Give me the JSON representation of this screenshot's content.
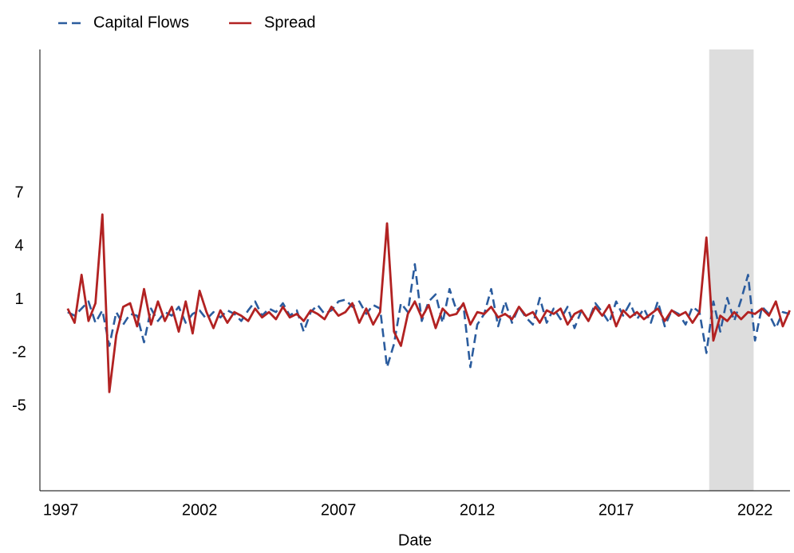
{
  "chart_data": {
    "type": "line",
    "x_label": "Date",
    "x": [
      1997.25,
      1997.5,
      1997.75,
      1998.0,
      1998.25,
      1998.5,
      1998.75,
      1999.0,
      1999.25,
      1999.5,
      1999.75,
      2000.0,
      2000.25,
      2000.5,
      2000.75,
      2001.0,
      2001.25,
      2001.5,
      2001.75,
      2002.0,
      2002.25,
      2002.5,
      2002.75,
      2003.0,
      2003.25,
      2003.5,
      2003.75,
      2004.0,
      2004.25,
      2004.5,
      2004.75,
      2005.0,
      2005.25,
      2005.5,
      2005.75,
      2006.0,
      2006.25,
      2006.5,
      2006.75,
      2007.0,
      2007.25,
      2007.5,
      2007.75,
      2008.0,
      2008.25,
      2008.5,
      2008.75,
      2009.0,
      2009.25,
      2009.5,
      2009.75,
      2010.0,
      2010.25,
      2010.5,
      2010.75,
      2011.0,
      2011.25,
      2011.5,
      2011.75,
      2012.0,
      2012.25,
      2012.5,
      2012.75,
      2013.0,
      2013.25,
      2013.5,
      2013.75,
      2014.0,
      2014.25,
      2014.5,
      2014.75,
      2015.0,
      2015.25,
      2015.5,
      2015.75,
      2016.0,
      2016.25,
      2016.5,
      2016.75,
      2017.0,
      2017.25,
      2017.5,
      2017.75,
      2018.0,
      2018.25,
      2018.5,
      2018.75,
      2019.0,
      2019.25,
      2019.5,
      2019.75,
      2020.0,
      2020.25,
      2020.5,
      2020.75,
      2021.0,
      2021.25,
      2021.5,
      2021.75,
      2022.0,
      2022.25,
      2022.5,
      2022.75,
      2023.0,
      2023.25
    ],
    "series": [
      {
        "name": "Capital Flows",
        "color": "#2b5c9e",
        "dashed": true,
        "values": [
          0.3,
          0.1,
          0.5,
          0.9,
          -0.3,
          0.4,
          -1.6,
          0.3,
          -0.4,
          0.2,
          0.1,
          -1.4,
          0.5,
          -0.2,
          0.3,
          0.1,
          0.6,
          -0.3,
          0.2,
          0.4,
          -0.1,
          0.3,
          0.0,
          0.4,
          0.2,
          -0.2,
          0.4,
          0.9,
          0.1,
          0.5,
          0.3,
          0.8,
          0.1,
          0.4,
          -0.8,
          0.3,
          0.7,
          0.2,
          0.4,
          0.9,
          1.0,
          0.6,
          0.9,
          0.2,
          0.7,
          0.5,
          -2.8,
          -1.5,
          0.8,
          0.3,
          3.0,
          -0.2,
          0.9,
          1.3,
          -0.3,
          1.6,
          0.4,
          0.7,
          -2.8,
          -0.4,
          0.2,
          1.6,
          -0.5,
          0.9,
          -0.3,
          0.6,
          0.0,
          -0.4,
          1.1,
          -0.3,
          0.5,
          -0.1,
          0.6,
          -0.6,
          0.4,
          -0.2,
          0.8,
          0.3,
          -0.3,
          0.9,
          0.1,
          0.8,
          -0.1,
          0.5,
          -0.3,
          0.9,
          -0.5,
          0.4,
          0.2,
          -0.4,
          0.6,
          0.3,
          -2.0,
          0.9,
          -0.8,
          1.1,
          -0.2,
          1.0,
          2.4,
          -1.3,
          0.6,
          0.2,
          -0.6,
          0.3,
          0.2
        ]
      },
      {
        "name": "Spread",
        "color": "#b22222",
        "dashed": false,
        "values": [
          0.5,
          -0.3,
          2.4,
          -0.2,
          0.8,
          5.8,
          -4.2,
          -1.0,
          0.6,
          0.8,
          -0.5,
          1.6,
          -0.4,
          0.9,
          -0.2,
          0.6,
          -0.8,
          0.9,
          -0.9,
          1.5,
          0.3,
          -0.6,
          0.4,
          -0.3,
          0.3,
          0.1,
          -0.2,
          0.5,
          0.0,
          0.3,
          -0.1,
          0.6,
          0.0,
          0.2,
          -0.2,
          0.4,
          0.2,
          -0.1,
          0.6,
          0.1,
          0.3,
          0.8,
          -0.3,
          0.5,
          -0.4,
          0.3,
          5.3,
          -0.8,
          -1.6,
          0.2,
          0.9,
          0.0,
          0.7,
          -0.6,
          0.5,
          0.1,
          0.2,
          0.8,
          -0.4,
          0.3,
          0.2,
          0.6,
          0.0,
          0.2,
          -0.1,
          0.6,
          0.1,
          0.3,
          -0.3,
          0.4,
          0.2,
          0.5,
          -0.4,
          0.2,
          0.4,
          -0.2,
          0.6,
          0.1,
          0.7,
          -0.5,
          0.4,
          0.0,
          0.3,
          -0.1,
          0.2,
          0.5,
          -0.2,
          0.4,
          0.1,
          0.3,
          -0.3,
          0.3,
          4.5,
          -1.3,
          0.1,
          -0.2,
          0.3,
          -0.1,
          0.3,
          0.2,
          0.5,
          0.1,
          0.9,
          -0.5,
          0.4
        ]
      }
    ],
    "highlight": {
      "start": 2020.35,
      "end": 2021.95,
      "color": "#dddddd"
    },
    "xlim": [
      1996.25,
      2023.26
    ],
    "xticks": [
      1997,
      2002,
      2007,
      2012,
      2017,
      2022
    ],
    "ylim": [
      -9.76,
      15.09
    ],
    "yticks": [
      -5,
      -2,
      1,
      4,
      7
    ],
    "grid": false,
    "legend": "top-left"
  }
}
